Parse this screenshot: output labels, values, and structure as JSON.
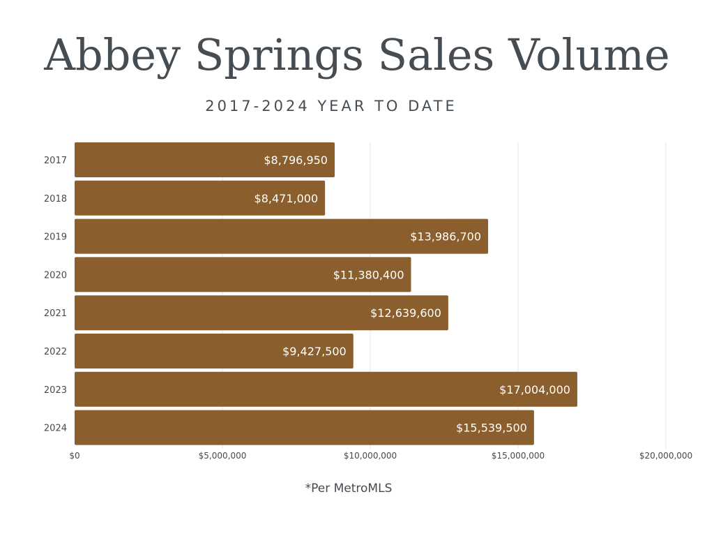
{
  "header": {
    "title": "Abbey Springs Sales Volume",
    "subtitle": "2017-2024 YEAR TO DATE"
  },
  "footnote": "*Per MetroMLS",
  "colors": {
    "bar": "#8a5f2d",
    "grid": "#e6e6e6",
    "text": "#444a50",
    "bar_label": "#ffffff"
  },
  "chart_data": {
    "type": "bar",
    "orientation": "horizontal",
    "title": "Abbey Springs Sales Volume",
    "subtitle": "2017-2024 YEAR TO DATE",
    "categories": [
      "2017",
      "2018",
      "2019",
      "2020",
      "2021",
      "2022",
      "2023",
      "2024"
    ],
    "values": [
      8796950,
      8471000,
      13986700,
      11380400,
      12639600,
      9427500,
      17004000,
      15539500
    ],
    "value_labels": [
      "$8,796,950",
      "$8,471,000",
      "$13,986,700",
      "$11,380,400",
      "$12,639,600",
      "$9,427,500",
      "$17,004,000",
      "$15,539,500"
    ],
    "xlim": [
      0,
      20000000
    ],
    "xticks": [
      0,
      5000000,
      10000000,
      15000000,
      20000000
    ],
    "xtick_labels": [
      "$0",
      "$5,000,000",
      "$10,000,000",
      "$15,000,000",
      "$20,000,000"
    ],
    "xlabel": "",
    "ylabel": "",
    "grid": true,
    "legend": "none"
  }
}
